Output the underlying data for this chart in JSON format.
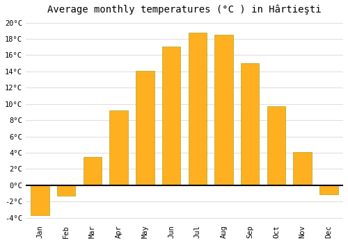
{
  "title": "Average monthly temperatures (°C ) in Hârtieşti",
  "months": [
    "Jan",
    "Feb",
    "Mar",
    "Apr",
    "May",
    "Jun",
    "Jul",
    "Aug",
    "Sep",
    "Oct",
    "Nov",
    "Dec"
  ],
  "values": [
    -3.7,
    -1.3,
    3.5,
    9.2,
    14.1,
    17.1,
    18.8,
    18.5,
    15.0,
    9.7,
    4.1,
    -1.1
  ],
  "bar_color_top": "#FFB733",
  "bar_color_bottom": "#FF9900",
  "bar_edge_color": "#888800",
  "ylim": [
    -4.5,
    20.5
  ],
  "yticks": [
    -4,
    -2,
    0,
    2,
    4,
    6,
    8,
    10,
    12,
    14,
    16,
    18,
    20
  ],
  "ytick_labels": [
    "-4°C",
    "-2°C",
    "0°C",
    "2°C",
    "4°C",
    "6°C",
    "8°C",
    "10°C",
    "12°C",
    "14°C",
    "16°C",
    "18°C",
    "20°C"
  ],
  "background_color": "#ffffff",
  "plot_bg_color": "#ffffff",
  "grid_color": "#e0e0e0",
  "title_fontsize": 10,
  "tick_fontsize": 7.5,
  "bar_width": 0.7
}
